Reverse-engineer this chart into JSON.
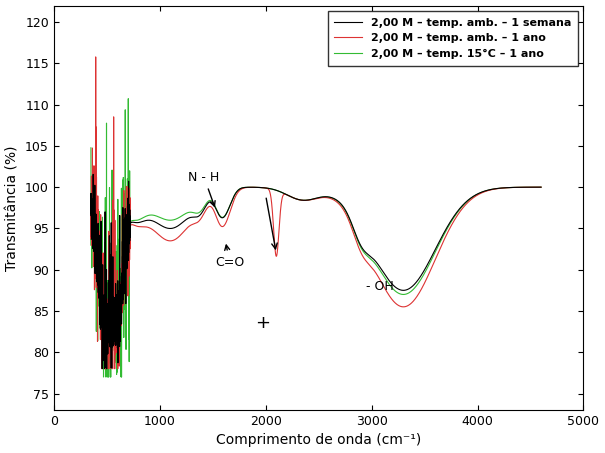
{
  "xlabel": "Comprimento de onda (cm⁻¹)",
  "ylabel": "Transmitância (%)",
  "xlim": [
    0,
    5000
  ],
  "ylim": [
    73,
    122
  ],
  "yticks": [
    75,
    80,
    85,
    90,
    95,
    100,
    105,
    110,
    115,
    120
  ],
  "xticks": [
    0,
    1000,
    2000,
    3000,
    4000,
    5000
  ],
  "legend_entries": [
    "2,00 M – temp. amb. – 1 semana",
    "2,00 M – temp. amb. – 1 ano",
    "2,00 M – temp. 15°C – 1 ano"
  ],
  "line_colors": [
    "black",
    "#dd3333",
    "#33bb33"
  ],
  "lw": [
    0.8,
    0.8,
    0.8
  ]
}
